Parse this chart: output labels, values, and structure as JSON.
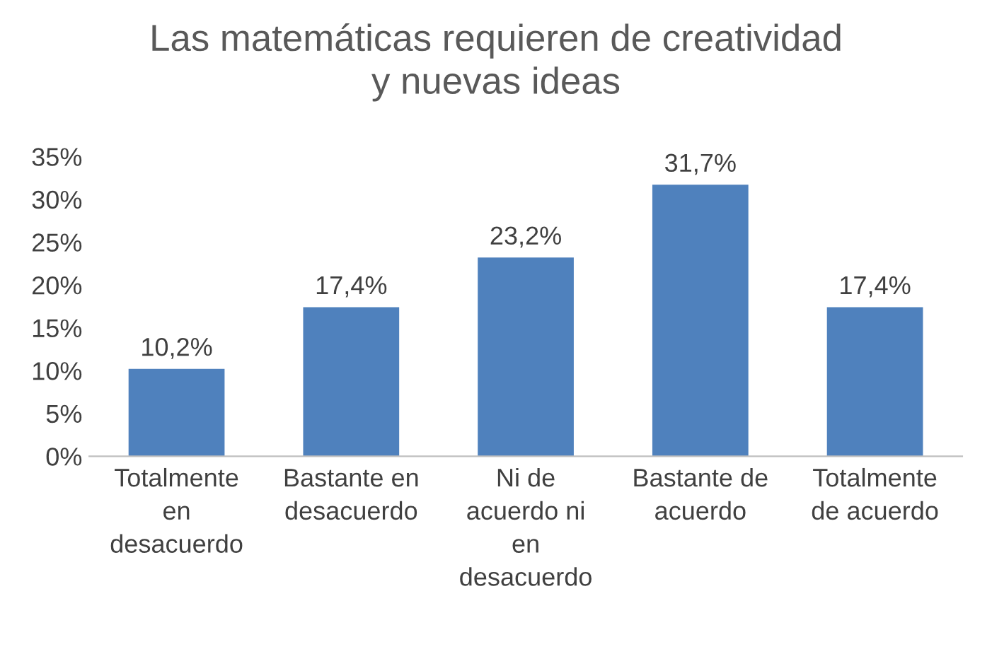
{
  "chart_data": {
    "type": "bar",
    "title": "Las matemáticas requieren de creatividad\ny nuevas ideas",
    "categories": [
      "Totalmente\nen\ndesacuerdo",
      "Bastante en\ndesacuerdo",
      "Ni de\nacuerdo ni\nen\ndesacuerdo",
      "Bastante de\nacuerdo",
      "Totalmente\nde acuerdo"
    ],
    "values": [
      10.2,
      17.4,
      23.2,
      31.7,
      17.4
    ],
    "value_labels": [
      "10,2%",
      "17,4%",
      "23,2%",
      "31,7%",
      "17,4%"
    ],
    "color": "#4f81bd",
    "ylim": [
      0,
      35
    ],
    "yticks": [
      {
        "value": 0,
        "label": "0%"
      },
      {
        "value": 5,
        "label": "5%"
      },
      {
        "value": 10,
        "label": "10%"
      },
      {
        "value": 15,
        "label": "15%"
      },
      {
        "value": 20,
        "label": "20%"
      },
      {
        "value": 25,
        "label": "25%"
      },
      {
        "value": 30,
        "label": "30%"
      },
      {
        "value": 35,
        "label": "35%"
      }
    ],
    "grid": false
  }
}
